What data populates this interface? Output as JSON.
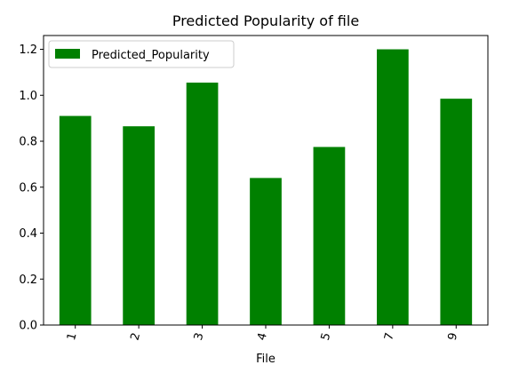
{
  "chart_data": {
    "type": "bar",
    "title": "Predicted Popularity of file",
    "xlabel": "File",
    "ylabel": "",
    "categories": [
      "1",
      "2",
      "3",
      "4",
      "5",
      "7",
      "9"
    ],
    "series": [
      {
        "name": "Predicted_Popularity",
        "values": [
          0.91,
          0.865,
          1.055,
          0.64,
          0.775,
          1.2,
          0.985
        ],
        "color": "#008000"
      }
    ],
    "ylim": [
      0,
      1.26
    ],
    "yticks": [
      "0.0",
      "0.2",
      "0.4",
      "0.6",
      "0.8",
      "1.0",
      "1.2"
    ],
    "legend_position": "top-left",
    "grid": false,
    "x_tick_rotation": "rotated"
  }
}
